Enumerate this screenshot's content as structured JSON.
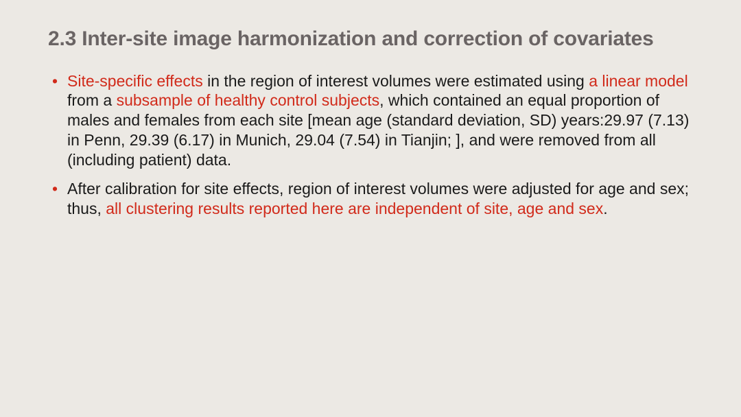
{
  "colors": {
    "background": "#ece9e4",
    "title": "#6a6464",
    "body_text": "#1a1a1a",
    "highlight": "#d12a1a",
    "bullet": "#d12a1a"
  },
  "typography": {
    "title_fontsize": 30,
    "title_weight": 700,
    "body_fontsize": 23,
    "line_height": 1.25,
    "font_family": "Segoe UI"
  },
  "title": "2.3 Inter-site image harmonization and correction of covariates",
  "bullets": [
    {
      "segments": [
        {
          "text": "Site-specific effects",
          "highlight": true
        },
        {
          "text": " in the region of interest volumes were estimated using ",
          "highlight": false
        },
        {
          "text": "a linear model",
          "highlight": true
        },
        {
          "text": " from a ",
          "highlight": false
        },
        {
          "text": "subsample of healthy control subjects",
          "highlight": true
        },
        {
          "text": ", which contained an equal proportion of males and females from each site [mean age (standard deviation, SD) years:29.97 (7.13) in Penn, 29.39 (6.17) in Munich, 29.04 (7.54) in Tianjin; ], and were removed from all (including patient) data.",
          "highlight": false
        }
      ]
    },
    {
      "segments": [
        {
          "text": " After calibration for site effects, region of interest volumes were adjusted for age and sex; thus, ",
          "highlight": false
        },
        {
          "text": "all clustering results reported here are independent of site, age and sex",
          "highlight": true
        },
        {
          "text": ".",
          "highlight": false
        }
      ]
    }
  ]
}
